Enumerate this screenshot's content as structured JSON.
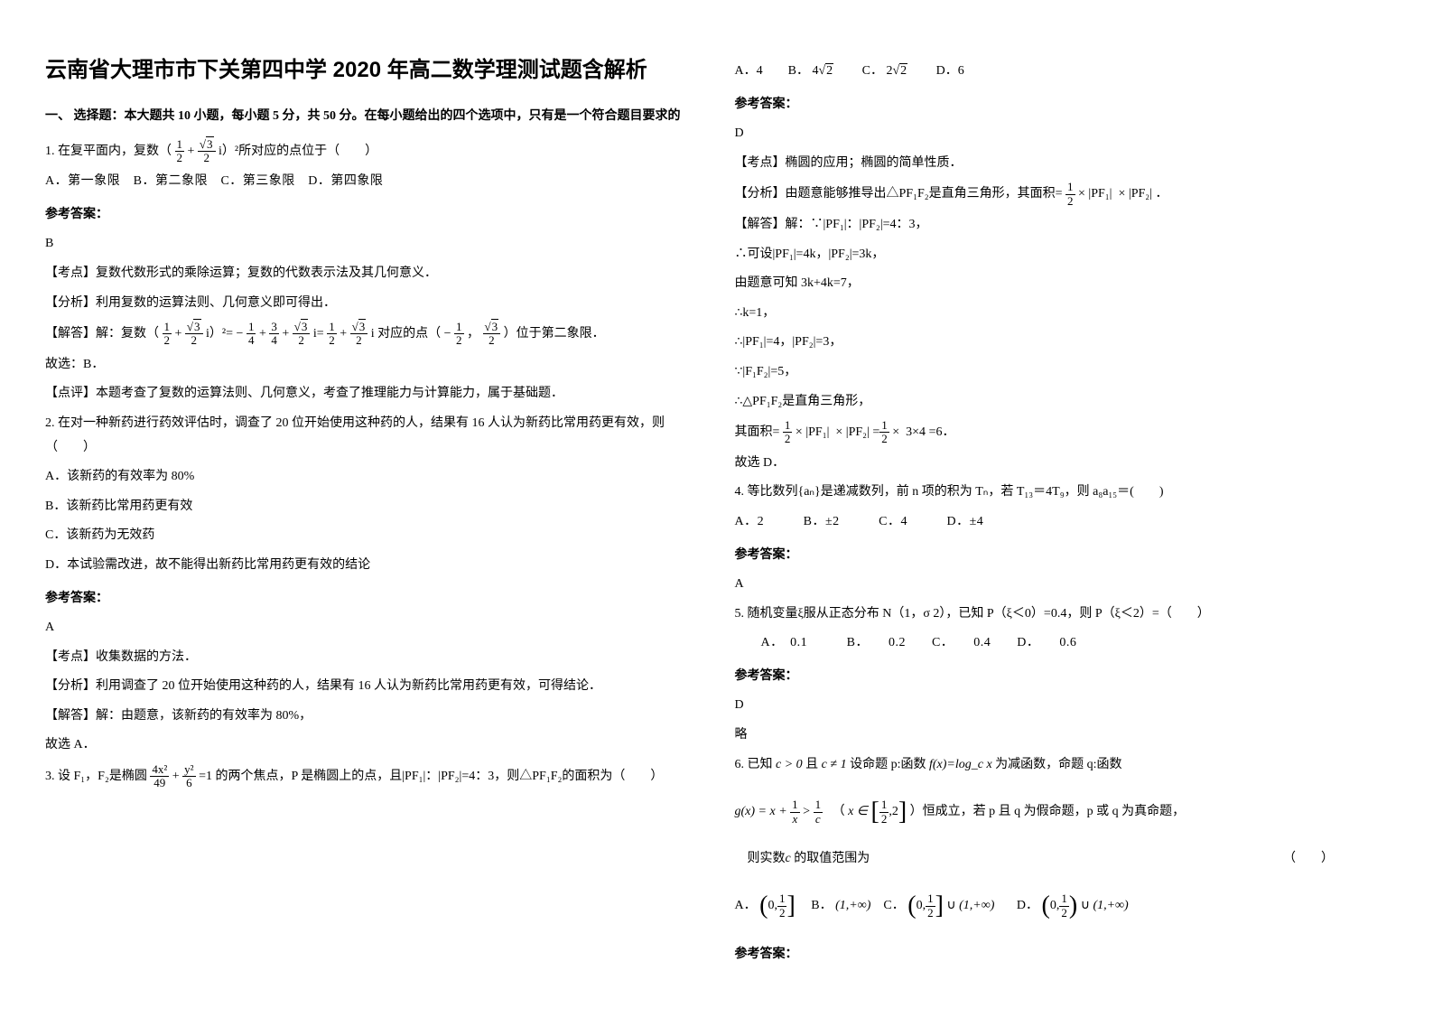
{
  "title": "云南省大理市市下关第四中学 2020 年高二数学理测试题含解析",
  "section1_head": "一、 选择题：本大题共 10 小题，每小题 5 分，共 50 分。在每小题给出的四个选项中，只有是一个符合题目要求的",
  "q1_stem_a": "1. 在复平面内，复数（",
  "q1_stem_b": "i）²所对应的点位于（　　）",
  "q1_opts": "A．第一象限　B．第二象限　C．第三象限　D．第四象限",
  "ans_label": "参考答案：",
  "q1_ans": "B",
  "q1_exp1": "【考点】复数代数形式的乘除运算；复数的代数表示法及其几何意义．",
  "q1_exp2": "【分析】利用复数的运算法则、几何意义即可得出．",
  "q1_exp3a": "【解答】解：复数（",
  "q1_exp3b": "i）²=",
  "q1_exp3c": "i=",
  "q1_exp3d": "i 对应的点（",
  "q1_exp3e": "）位于第二象限．",
  "q1_exp4": "故选：B．",
  "q1_exp5": "【点评】本题考查了复数的运算法则、几何意义，考查了推理能力与计算能力，属于基础题．",
  "q2_stem": "2. 在对一种新药进行药效评估时，调查了 20 位开始使用这种药的人，结果有 16 人认为新药比常用药更有效，则（　　）",
  "q2_a": "A．该新药的有效率为 80%",
  "q2_b": "B．该新药比常用药更有效",
  "q2_c": "C．该新药为无效药",
  "q2_d": "D．本试验需改进，故不能得出新药比常用药更有效的结论",
  "q2_ans": "A",
  "q2_exp1": "【考点】收集数据的方法．",
  "q2_exp2": "【分析】利用调查了 20 位开始使用这种药的人，结果有 16 人认为新药比常用药更有效，可得结论．",
  "q2_exp3": "【解答】解：由题意，该新药的有效率为 80%，",
  "q2_exp4": "故选 A．",
  "q3_stem_a": "3. 设 F₁，F₂是椭圆",
  "q3_stem_b": "的两个焦点，P 是椭圆上的点，且|PF₁|：|PF₂|=4：3，则△PF₁F₂的面积为（　　）",
  "q3_opts_a": "A．4　　B．",
  "q3_opts_b": "　　C．",
  "q3_opts_c": "　　D．6",
  "q3_ans": "D",
  "q3_exp1": "【考点】椭圆的应用；椭圆的简单性质．",
  "q3_exp2a": "【分析】由题意能够推导出△PF₁F₂是直角三角形，其面积=",
  "q3_exp2b": "．",
  "q3_exp3": "【解答】解：∵|PF₁|：|PF₂|=4：3，",
  "q3_exp4": "∴可设|PF₁|=4k，|PF₂|=3k，",
  "q3_exp5": "由题意可知 3k+4k=7，",
  "q3_exp6": "∴k=1，",
  "q3_exp7": "∴|PF₁|=4，|PF₂|=3，",
  "q3_exp8": "∵|F₁F₂|=5，",
  "q3_exp9": "∴△PF₁F₂是直角三角形，",
  "q3_exp10a": "其面积=",
  "q3_exp10b": "=6．",
  "q3_exp11": "故选 D．",
  "q4_stem": "4. 等比数列{aₙ}是递减数列，前 n 项的积为 Tₙ，若 T₁₃＝4T₉，则 a₈a₁₅＝(　　)",
  "q4_opts": "A．2　　　B．±2　　　C．4　　　D．±4",
  "q4_ans": "A",
  "q5_stem": "5. 随机变量ξ服从正态分布 N（1，σ 2），已知 P（ξ＜0）=0.4，则 P（ξ＜2）=（　　）",
  "q5_opts": "　　A．　0.1　　　B．　　0.2　　C．　　0.4　　D．　　0.6",
  "q5_ans": "D",
  "q5_exp": "略",
  "q6_stem_a": "6. 已知",
  "q6_stem_a2": "且",
  "q6_stem_b": " 设命题 p:函数",
  "q6_stem_c": " 为减函数，命题 q:函数",
  "q6_stem_d": "（",
  "q6_stem_e": "）恒成立，若 p 且 q 为假命题，p 或 q 为真命题，",
  "q6_stem_f": "则实数",
  "q6_stem_g": " 的取值范围为",
  "q6_paren": "（　　）",
  "q6_A": "A．",
  "q6_B": "B．",
  "q6_C": "C．",
  "q6_D": "D．",
  "math": {
    "half_num": "1",
    "half_den": "2",
    "sqrt3_num": "3",
    "neg_half_num": "1",
    "q1_calc_num1": "1",
    "q1_calc_den1": "4",
    "q1_calc_num2": "3",
    "q1_calc_den2": "4",
    "minus": "−",
    "plus": "+",
    "comma": "，",
    "q3_ellipse_a": "4x²",
    "q3_ellipse_a_den": "49",
    "q3_ellipse_b": "y²",
    "q3_ellipse_b_den": "6",
    "q3_eq1": "=1",
    "q3_4sqrt2": "4",
    "q3_2sqrt2": "2",
    "sqrt2": "2",
    "times": "×",
    "pf1": "|PF₁|",
    "pf2": "|PF₂|",
    "three_four": "3×4",
    "c_gt_0": "c > 0",
    "c_ne_1": "c ≠ 1",
    "fx_log": "f(x)=log_c x",
    "gx_a": "g(x) = x +",
    "gx_num": "1",
    "gx_den": "x",
    "gt": ">",
    "one_over_c_num": "1",
    "one_over_c_den": "c",
    "x_in": "x ∈",
    "interval_a": "1",
    "interval_a_den": "2",
    "interval_b": ",2",
    "c_var": "c",
    "zero": "0,",
    "half": "1",
    "half_d": "2",
    "one_inf": "(1,+∞)",
    "cup": "∪"
  }
}
